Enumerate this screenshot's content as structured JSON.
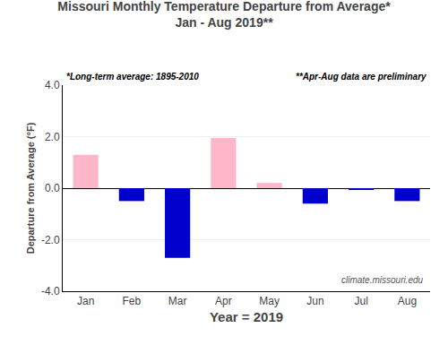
{
  "chart_data": {
    "type": "bar",
    "title": "Missouri Monthly Temperature Departure from Average*",
    "subtitle": "Jan - Aug 2019**",
    "xlabel": "Year = 2019",
    "ylabel": "Departure from Average (°F)",
    "categories": [
      "Jan",
      "Feb",
      "Mar",
      "Apr",
      "May",
      "Jun",
      "Jul",
      "Aug"
    ],
    "values": [
      1.3,
      -0.5,
      -2.7,
      1.95,
      0.2,
      -0.6,
      -0.05,
      -0.5
    ],
    "colors": [
      "#FFB6C8",
      "#0000CC",
      "#0000CC",
      "#FFB6C8",
      "#FFB6C8",
      "#0000CC",
      "#0000CC",
      "#0000CC"
    ],
    "ylim": [
      -4.0,
      4.0
    ],
    "yticks": [
      {
        "value": -4.0,
        "label": "-4.0"
      },
      {
        "value": -2.0,
        "label": "-2.0"
      },
      {
        "value": 0.0,
        "label": "0.0"
      },
      {
        "value": 2.0,
        "label": "2.0"
      },
      {
        "value": 4.0,
        "label": "4.0"
      }
    ],
    "grid": true,
    "annotations": [
      "*Long-term average: 1895-2010",
      "**Apr-Aug data are preliminary",
      "climate.missouri.edu"
    ]
  }
}
